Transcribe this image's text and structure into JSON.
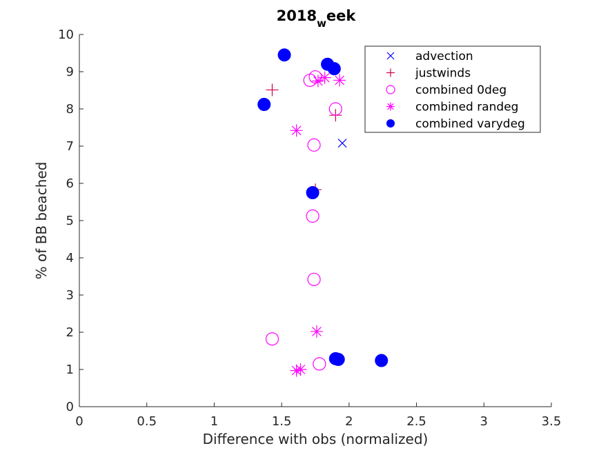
{
  "chart_data": {
    "type": "scatter",
    "title": "2018_week",
    "title_parts": {
      "main": "2018",
      "sub": "w",
      "rest": "eek"
    },
    "xlabel": "Difference with obs (normalized)",
    "ylabel": "% of BB beached",
    "xlim": [
      0,
      3.5
    ],
    "ylim": [
      0,
      10
    ],
    "xticks": [
      0,
      0.5,
      1,
      1.5,
      2,
      2.5,
      3,
      3.5
    ],
    "xtick_labels": [
      "0",
      "0.5",
      "1",
      "1.5",
      "2",
      "2.5",
      "3",
      "3.5"
    ],
    "yticks": [
      0,
      1,
      2,
      3,
      4,
      5,
      6,
      7,
      8,
      9,
      10
    ],
    "ytick_labels": [
      "0",
      "1",
      "2",
      "3",
      "4",
      "5",
      "6",
      "7",
      "8",
      "9",
      "10"
    ],
    "grid": false,
    "legend_position": "top-right",
    "series": [
      {
        "name": "advection",
        "marker": "x",
        "color": "#0000ff",
        "points": [
          [
            1.95,
            7.08
          ]
        ]
      },
      {
        "name": "justwinds",
        "marker": "+",
        "color": "#cc0044",
        "points": [
          [
            1.43,
            8.51
          ],
          [
            1.9,
            7.83
          ],
          [
            1.75,
            5.83
          ]
        ]
      },
      {
        "name": "combined 0deg",
        "marker": "o",
        "color": "#ff00ff",
        "points": [
          [
            1.71,
            8.77
          ],
          [
            1.75,
            8.86
          ],
          [
            1.9,
            8.0
          ],
          [
            1.74,
            7.03
          ],
          [
            1.73,
            5.12
          ],
          [
            1.74,
            3.42
          ],
          [
            1.43,
            1.82
          ],
          [
            1.78,
            1.15
          ]
        ]
      },
      {
        "name": "combined randeg",
        "marker": "*",
        "color": "#ff00ff",
        "points": [
          [
            1.77,
            8.75
          ],
          [
            1.82,
            8.84
          ],
          [
            1.93,
            8.77
          ],
          [
            1.61,
            7.42
          ],
          [
            1.76,
            2.02
          ],
          [
            1.61,
            0.97
          ],
          [
            1.64,
            1.0
          ]
        ]
      },
      {
        "name": "combined varydeg",
        "marker": "filled-circle",
        "color": "#0000ff",
        "points": [
          [
            1.52,
            9.45
          ],
          [
            1.84,
            9.2
          ],
          [
            1.89,
            9.08
          ],
          [
            1.37,
            8.12
          ],
          [
            1.73,
            5.75
          ],
          [
            1.9,
            1.29
          ],
          [
            1.92,
            1.27
          ],
          [
            2.24,
            1.24
          ]
        ]
      }
    ]
  }
}
